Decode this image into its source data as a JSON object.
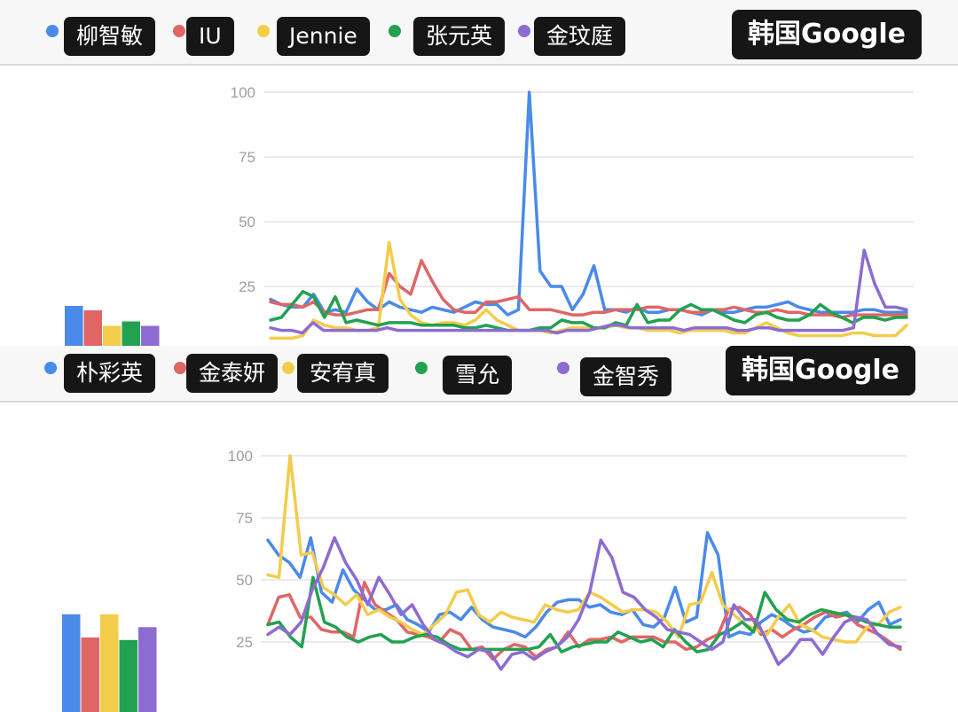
{
  "source_label": "韩国Google",
  "colors": [
    "#4a8ae8",
    "#e06666",
    "#f3cc4c",
    "#22a150",
    "#8c6cd0"
  ],
  "chart_data": [
    {
      "type": "line",
      "series": [
        {
          "name": "柳智敏",
          "color": "#4a8ae8",
          "values": [
            20,
            18,
            17,
            17,
            22,
            15,
            16,
            15,
            24,
            19,
            16,
            19,
            17,
            16,
            15,
            17,
            16,
            15,
            17,
            19,
            18,
            18,
            14,
            16,
            100,
            31,
            25,
            25,
            16,
            22,
            33,
            16,
            16,
            15,
            17,
            15,
            15,
            16,
            16,
            15,
            14,
            16,
            15,
            15,
            16,
            17,
            17,
            18,
            19,
            17,
            16,
            15,
            15,
            15,
            15,
            16,
            16,
            15,
            15,
            15
          ]
        },
        {
          "name": "IU",
          "color": "#e06666",
          "values": [
            19,
            18,
            18,
            17,
            19,
            15,
            14,
            14,
            15,
            16,
            16,
            30,
            25,
            22,
            35,
            27,
            20,
            16,
            15,
            15,
            19,
            19,
            20,
            21,
            16,
            16,
            16,
            15,
            14,
            14,
            15,
            15,
            16,
            16,
            16,
            17,
            17,
            16,
            16,
            15,
            15,
            16,
            16,
            17,
            16,
            15,
            15,
            16,
            15,
            15,
            14,
            14,
            14,
            13,
            14,
            14,
            14,
            14,
            14,
            14
          ]
        },
        {
          "name": "Jennie",
          "color": "#f3cc4c",
          "values": [
            5,
            5,
            5,
            6,
            12,
            10,
            9,
            9,
            8,
            8,
            9,
            42,
            20,
            14,
            11,
            10,
            11,
            11,
            10,
            12,
            16,
            12,
            10,
            8,
            8,
            8,
            7,
            8,
            9,
            9,
            9,
            9,
            10,
            9,
            9,
            8,
            8,
            8,
            7,
            8,
            8,
            8,
            8,
            7,
            7,
            9,
            11,
            9,
            7,
            6,
            6,
            6,
            6,
            6,
            7,
            7,
            6,
            6,
            6,
            10
          ]
        },
        {
          "name": "张元英",
          "color": "#22a150",
          "values": [
            12,
            13,
            18,
            23,
            21,
            13,
            21,
            11,
            12,
            11,
            10,
            11,
            11,
            11,
            10,
            10,
            10,
            10,
            9,
            9,
            10,
            9,
            8,
            8,
            8,
            9,
            9,
            12,
            11,
            11,
            9,
            9,
            11,
            10,
            18,
            11,
            12,
            12,
            16,
            18,
            16,
            16,
            14,
            12,
            11,
            14,
            15,
            13,
            12,
            12,
            14,
            18,
            15,
            13,
            11,
            13,
            13,
            12,
            13,
            13
          ]
        },
        {
          "name": "金玟庭",
          "color": "#8c6cd0",
          "values": [
            9,
            8,
            8,
            7,
            11,
            8,
            8,
            8,
            8,
            8,
            8,
            9,
            8,
            8,
            8,
            8,
            8,
            8,
            8,
            8,
            8,
            8,
            8,
            8,
            8,
            8,
            8,
            7,
            8,
            8,
            8,
            9,
            10,
            10,
            9,
            9,
            9,
            9,
            9,
            8,
            9,
            9,
            9,
            9,
            8,
            8,
            9,
            9,
            8,
            8,
            8,
            8,
            8,
            8,
            8,
            9,
            39,
            26,
            17,
            17,
            16
          ]
        }
      ],
      "summary_bars": [
        18,
        16,
        9,
        11,
        9
      ],
      "y_ticks": [
        100,
        75,
        50,
        25
      ],
      "ylim": [
        0,
        100
      ]
    },
    {
      "type": "line",
      "series": [
        {
          "name": "朴彩英",
          "color": "#4a8ae8",
          "values": [
            66,
            60,
            57,
            51,
            67,
            45,
            41,
            54,
            46,
            42,
            38,
            38,
            40,
            34,
            32,
            29,
            36,
            37,
            34,
            39,
            34,
            31,
            30,
            29,
            27,
            31,
            37,
            41,
            42,
            42,
            39,
            40,
            37,
            36,
            38,
            32,
            31,
            35,
            47,
            33,
            35,
            69,
            60,
            27,
            29,
            28,
            33,
            36,
            34,
            31,
            29,
            30,
            35,
            36,
            37,
            33,
            38,
            41,
            32,
            34
          ]
        },
        {
          "name": "金泰妍",
          "color": "#e06666",
          "values": [
            32,
            43,
            44,
            35,
            35,
            30,
            29,
            29,
            27,
            49,
            40,
            37,
            34,
            29,
            28,
            27,
            25,
            30,
            28,
            22,
            23,
            18,
            22,
            24,
            23,
            19,
            22,
            23,
            29,
            23,
            26,
            26,
            27,
            25,
            27,
            27,
            27,
            25,
            25,
            22,
            23,
            26,
            28,
            38,
            39,
            36,
            28,
            30,
            27,
            30,
            32,
            35,
            37,
            35,
            36,
            32,
            30,
            28,
            25,
            22
          ]
        },
        {
          "name": "安宥真",
          "color": "#f3cc4c",
          "values": [
            52,
            51,
            100,
            60,
            61,
            47,
            44,
            40,
            44,
            36,
            38,
            35,
            33,
            30,
            28,
            32,
            36,
            45,
            46,
            36,
            33,
            37,
            35,
            34,
            33,
            40,
            38,
            37,
            38,
            45,
            43,
            40,
            37,
            38,
            38,
            37,
            33,
            27,
            40,
            41,
            53,
            40,
            36,
            32,
            30,
            28,
            35,
            40,
            32,
            30,
            27,
            26,
            25,
            25,
            31,
            32,
            37,
            39
          ]
        },
        {
          "name": "雪允",
          "color": "#22a150",
          "values": [
            32,
            33,
            27,
            23,
            51,
            33,
            31,
            27,
            25,
            27,
            28,
            25,
            25,
            27,
            28,
            27,
            24,
            22,
            22,
            22,
            22,
            22,
            22,
            22,
            23,
            28,
            21,
            23,
            24,
            25,
            25,
            29,
            27,
            25,
            26,
            23,
            30,
            25,
            21,
            22,
            28,
            30,
            33,
            29,
            45,
            38,
            34,
            33,
            36,
            38,
            37,
            36,
            35,
            33,
            32,
            31,
            31
          ]
        },
        {
          "name": "金智秀",
          "color": "#8c6cd0",
          "values": [
            28,
            31,
            28,
            33,
            46,
            55,
            67,
            57,
            50,
            40,
            51,
            44,
            36,
            40,
            32,
            26,
            24,
            21,
            19,
            22,
            21,
            14,
            20,
            21,
            18,
            21,
            23,
            27,
            34,
            45,
            66,
            59,
            45,
            43,
            38,
            35,
            30,
            29,
            28,
            25,
            22,
            25,
            40,
            34,
            34,
            25,
            16,
            20,
            26,
            26,
            20,
            27,
            33,
            35,
            34,
            28,
            24,
            23
          ]
        }
      ],
      "summary_bars": [
        38,
        29,
        38,
        28,
        33
      ],
      "y_ticks": [
        100,
        75,
        50,
        25
      ],
      "ylim": [
        0,
        100
      ]
    }
  ]
}
